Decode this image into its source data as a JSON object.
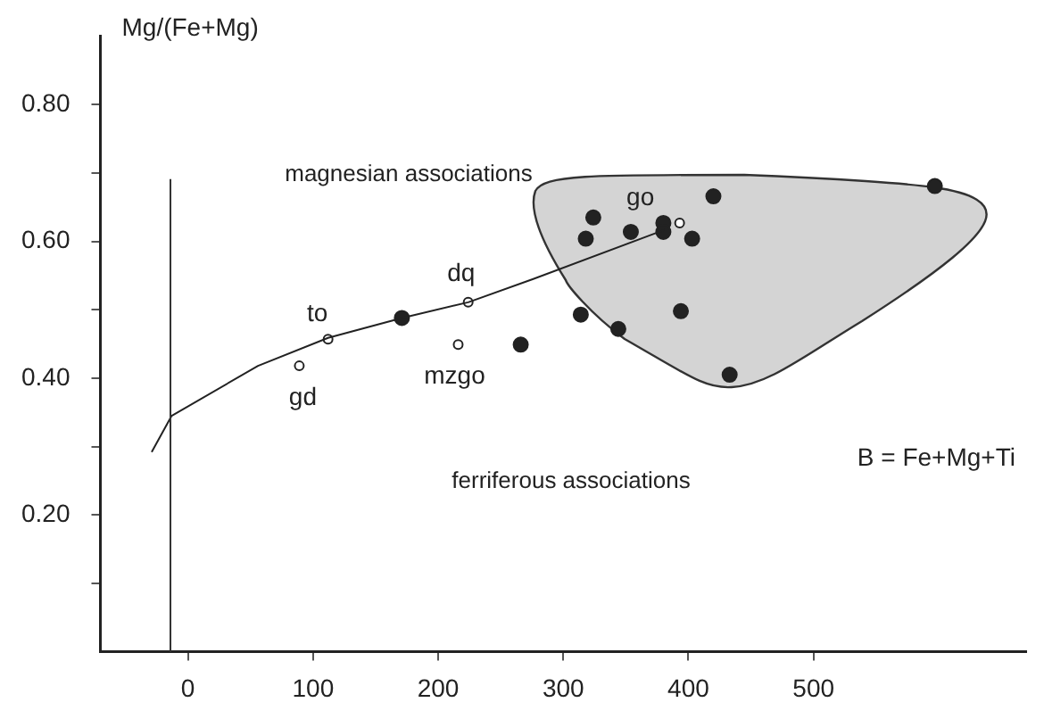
{
  "chart_data": {
    "type": "scatter",
    "xlabel": "B = Fe+Mg+Ti",
    "ylabel": "Mg/(Fe+Mg)",
    "xlim": [
      -70,
      670
    ],
    "ylim": [
      0,
      0.9
    ],
    "xticks": [
      0,
      100,
      200,
      300,
      400,
      500
    ],
    "yticks": [
      {
        "value": 0.1,
        "label": null
      },
      {
        "value": 0.2,
        "label": "0.20"
      },
      {
        "value": 0.3,
        "label": null
      },
      {
        "value": 0.4,
        "label": "0.40"
      },
      {
        "value": 0.5,
        "label": null
      },
      {
        "value": 0.6,
        "label": "0.60"
      },
      {
        "value": 0.7,
        "label": null
      },
      {
        "value": 0.8,
        "label": "0.80"
      }
    ],
    "grid": false,
    "legend": false,
    "series": [
      {
        "type": "line",
        "color": "#222222",
        "marker": "none",
        "x": [
          -29,
          -13,
          56,
          112,
          171,
          224,
          276,
          381
        ],
        "values": [
          0.292,
          0.345,
          0.418,
          0.459,
          0.488,
          0.511,
          0.545,
          0.617
        ]
      },
      {
        "type": "scatter",
        "color": "#222222",
        "marker": "circle",
        "x": [
          420,
          597,
          324,
          318,
          354,
          380,
          380,
          403,
          314,
          344,
          394,
          433,
          266,
          171
        ],
        "values": [
          0.666,
          0.681,
          0.635,
          0.604,
          0.614,
          0.627,
          0.614,
          0.604,
          0.493,
          0.472,
          0.498,
          0.405,
          0.449,
          0.488
        ]
      },
      {
        "type": "scatter",
        "color": "#ffffff",
        "marker": "circle",
        "x": [
          89,
          112,
          224,
          216,
          393
        ],
        "values": [
          0.418,
          0.457,
          0.511,
          0.449,
          0.627
        ]
      }
    ],
    "ref_lines": [
      {
        "axis": "x",
        "value": -14,
        "color": "#333333"
      }
    ],
    "annotations": [
      "magnesian associations",
      "ferriferous associations",
      {
        "text": "gd",
        "x": 89,
        "y": 0.418
      },
      {
        "text": "to",
        "x": 112,
        "y": 0.457
      },
      {
        "text": "dq",
        "x": 224,
        "y": 0.511
      },
      {
        "text": "mzgo",
        "x": 216,
        "y": 0.449
      },
      {
        "text": "go",
        "x": 393,
        "y": 0.627
      }
    ]
  }
}
